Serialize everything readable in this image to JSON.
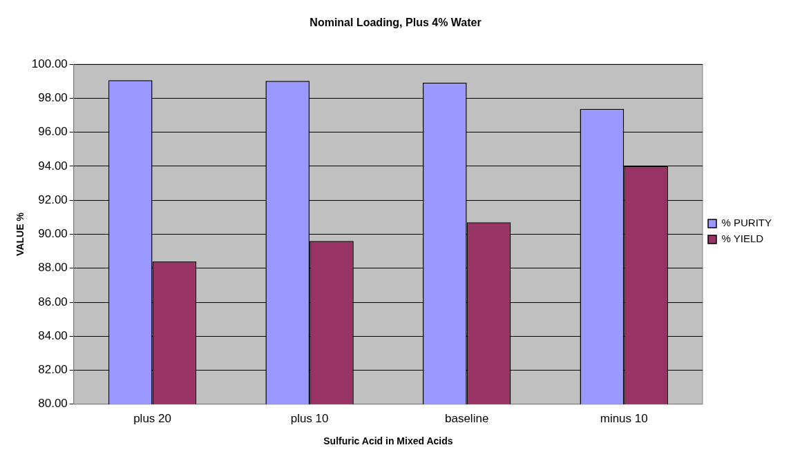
{
  "chart_data": {
    "type": "bar",
    "title": "Nominal Loading, Plus 4% Water",
    "xlabel": "Sulfuric Acid in Mixed Acids",
    "ylabel": "VALUE %",
    "categories": [
      "plus 20",
      "plus 10",
      "baseline",
      "minus 10"
    ],
    "series": [
      {
        "name": "% PURITY",
        "color": "#9999ff",
        "values": [
          99.06,
          99.02,
          98.92,
          97.38
        ]
      },
      {
        "name": "% YIELD",
        "color": "#993366",
        "values": [
          88.4,
          89.6,
          90.7,
          94.0
        ]
      }
    ],
    "ylim": [
      80,
      100
    ],
    "yticks": [
      {
        "value": 80,
        "label": "80.00"
      },
      {
        "value": 82,
        "label": "82.00"
      },
      {
        "value": 84,
        "label": "84.00"
      },
      {
        "value": 86,
        "label": "86.00"
      },
      {
        "value": 88,
        "label": "88.00"
      },
      {
        "value": 90,
        "label": "90.00"
      },
      {
        "value": 92,
        "label": "92.00"
      },
      {
        "value": 94,
        "label": "94.00"
      },
      {
        "value": 96,
        "label": "96.00"
      },
      {
        "value": 98,
        "label": "98.00"
      },
      {
        "value": 100,
        "label": "100.00"
      }
    ],
    "grid": "y",
    "legend": "right"
  }
}
